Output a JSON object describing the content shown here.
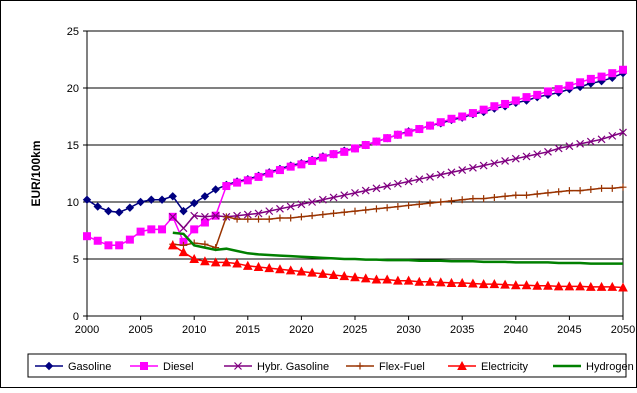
{
  "chart_data": {
    "type": "line",
    "title": "",
    "xlabel": "",
    "ylabel": "EUR/100km",
    "xlim": [
      2000,
      2050
    ],
    "ylim": [
      0,
      25
    ],
    "xticks": [
      2000,
      2005,
      2010,
      2015,
      2020,
      2025,
      2030,
      2035,
      2040,
      2045,
      2050
    ],
    "yticks": [
      0,
      5,
      10,
      15,
      20,
      25
    ],
    "grid": "horizontal",
    "legend_position": "bottom",
    "series": [
      {
        "name": "Gasoline",
        "color": "#000080",
        "marker": "diamond",
        "x": [
          2000,
          2001,
          2002,
          2003,
          2004,
          2005,
          2006,
          2007,
          2008,
          2009,
          2010,
          2011,
          2012,
          2013,
          2014,
          2015,
          2016,
          2017,
          2018,
          2019,
          2020,
          2021,
          2022,
          2023,
          2024,
          2025,
          2026,
          2027,
          2028,
          2029,
          2030,
          2031,
          2032,
          2033,
          2034,
          2035,
          2036,
          2037,
          2038,
          2039,
          2040,
          2041,
          2042,
          2043,
          2044,
          2045,
          2046,
          2047,
          2048,
          2049,
          2050
        ],
        "y": [
          10.2,
          9.6,
          9.2,
          9.1,
          9.5,
          10.0,
          10.2,
          10.2,
          10.5,
          9.2,
          9.9,
          10.5,
          11.1,
          11.5,
          11.8,
          12.0,
          12.3,
          12.6,
          12.9,
          13.2,
          13.4,
          13.7,
          14.0,
          14.2,
          14.5,
          14.7,
          15.0,
          15.3,
          15.6,
          15.9,
          16.2,
          16.4,
          16.7,
          16.9,
          17.2,
          17.4,
          17.7,
          17.9,
          18.2,
          18.4,
          18.7,
          18.9,
          19.2,
          19.4,
          19.6,
          19.9,
          20.1,
          20.4,
          20.6,
          20.9,
          21.3
        ]
      },
      {
        "name": "Diesel",
        "color": "#FF00FF",
        "marker": "square",
        "x": [
          2000,
          2001,
          2002,
          2003,
          2004,
          2005,
          2006,
          2007,
          2008,
          2009,
          2010,
          2011,
          2012,
          2013,
          2014,
          2015,
          2016,
          2017,
          2018,
          2019,
          2020,
          2021,
          2022,
          2023,
          2024,
          2025,
          2026,
          2027,
          2028,
          2029,
          2030,
          2031,
          2032,
          2033,
          2034,
          2035,
          2036,
          2037,
          2038,
          2039,
          2040,
          2041,
          2042,
          2043,
          2044,
          2045,
          2046,
          2047,
          2048,
          2049,
          2050
        ],
        "y": [
          7.0,
          6.6,
          6.2,
          6.2,
          6.7,
          7.4,
          7.6,
          7.6,
          8.7,
          6.5,
          7.6,
          8.2,
          8.8,
          11.4,
          11.7,
          11.9,
          12.2,
          12.5,
          12.8,
          13.1,
          13.3,
          13.6,
          13.9,
          14.2,
          14.4,
          14.7,
          15.0,
          15.3,
          15.6,
          15.9,
          16.1,
          16.4,
          16.7,
          17.0,
          17.3,
          17.5,
          17.8,
          18.1,
          18.4,
          18.6,
          18.9,
          19.2,
          19.4,
          19.7,
          19.9,
          20.2,
          20.5,
          20.8,
          21.0,
          21.3,
          21.6
        ]
      },
      {
        "name": "Hybr. Gasoline",
        "color": "#800080",
        "marker": "x",
        "x": [
          2008,
          2009,
          2010,
          2011,
          2012,
          2013,
          2014,
          2015,
          2016,
          2017,
          2018,
          2019,
          2020,
          2021,
          2022,
          2023,
          2024,
          2025,
          2026,
          2027,
          2028,
          2029,
          2030,
          2031,
          2032,
          2033,
          2034,
          2035,
          2036,
          2037,
          2038,
          2039,
          2040,
          2041,
          2042,
          2043,
          2044,
          2045,
          2046,
          2047,
          2048,
          2049,
          2050
        ],
        "y": [
          8.7,
          7.7,
          8.8,
          8.7,
          8.8,
          8.7,
          8.8,
          8.9,
          9.0,
          9.2,
          9.4,
          9.6,
          9.8,
          10.0,
          10.2,
          10.4,
          10.6,
          10.8,
          11.0,
          11.2,
          11.4,
          11.6,
          11.8,
          12.0,
          12.2,
          12.4,
          12.6,
          12.8,
          13.0,
          13.2,
          13.4,
          13.6,
          13.8,
          14.0,
          14.2,
          14.4,
          14.7,
          14.9,
          15.1,
          15.3,
          15.5,
          15.8,
          16.1
        ]
      },
      {
        "name": "Flex-Fuel",
        "color": "#993300",
        "marker": "plus",
        "x": [
          2008,
          2009,
          2010,
          2011,
          2012,
          2013,
          2014,
          2015,
          2016,
          2017,
          2018,
          2019,
          2020,
          2021,
          2022,
          2023,
          2024,
          2025,
          2026,
          2027,
          2028,
          2029,
          2030,
          2031,
          2032,
          2033,
          2034,
          2035,
          2036,
          2037,
          2038,
          2039,
          2040,
          2041,
          2042,
          2043,
          2044,
          2045,
          2046,
          2047,
          2048,
          2049,
          2050
        ],
        "y": [
          6.3,
          6.2,
          6.4,
          6.3,
          6.0,
          8.7,
          8.5,
          8.5,
          8.5,
          8.5,
          8.6,
          8.6,
          8.7,
          8.8,
          8.9,
          9.0,
          9.1,
          9.2,
          9.3,
          9.4,
          9.5,
          9.6,
          9.7,
          9.8,
          9.9,
          10.0,
          10.1,
          10.2,
          10.3,
          10.3,
          10.4,
          10.5,
          10.6,
          10.6,
          10.7,
          10.8,
          10.9,
          11.0,
          11.0,
          11.1,
          11.2,
          11.2,
          11.3
        ]
      },
      {
        "name": "Electricity",
        "color": "#FF0000",
        "marker": "triangle",
        "x": [
          2008,
          2009,
          2010,
          2011,
          2012,
          2013,
          2014,
          2015,
          2016,
          2017,
          2018,
          2019,
          2020,
          2021,
          2022,
          2023,
          2024,
          2025,
          2026,
          2027,
          2028,
          2029,
          2030,
          2031,
          2032,
          2033,
          2034,
          2035,
          2036,
          2037,
          2038,
          2039,
          2040,
          2041,
          2042,
          2043,
          2044,
          2045,
          2046,
          2047,
          2048,
          2049,
          2050
        ],
        "y": [
          6.2,
          5.6,
          5.0,
          4.8,
          4.7,
          4.7,
          4.6,
          4.4,
          4.3,
          4.2,
          4.1,
          4.0,
          3.9,
          3.8,
          3.7,
          3.6,
          3.5,
          3.4,
          3.3,
          3.2,
          3.2,
          3.1,
          3.1,
          3.0,
          3.0,
          2.95,
          2.9,
          2.9,
          2.85,
          2.8,
          2.8,
          2.75,
          2.7,
          2.7,
          2.65,
          2.65,
          2.6,
          2.6,
          2.6,
          2.55,
          2.55,
          2.55,
          2.5
        ]
      },
      {
        "name": "Hydrogen",
        "color": "#008000",
        "marker": "none",
        "x": [
          2008,
          2009,
          2010,
          2011,
          2012,
          2013,
          2014,
          2015,
          2016,
          2017,
          2018,
          2019,
          2020,
          2021,
          2022,
          2023,
          2024,
          2025,
          2026,
          2027,
          2028,
          2029,
          2030,
          2031,
          2032,
          2033,
          2034,
          2035,
          2036,
          2037,
          2038,
          2039,
          2040,
          2041,
          2042,
          2043,
          2044,
          2045,
          2046,
          2047,
          2048,
          2049,
          2050
        ],
        "y": [
          7.3,
          7.2,
          6.2,
          6.0,
          5.8,
          5.9,
          5.7,
          5.5,
          5.4,
          5.35,
          5.3,
          5.25,
          5.2,
          5.15,
          5.1,
          5.05,
          5.0,
          5.0,
          4.95,
          4.95,
          4.9,
          4.9,
          4.9,
          4.85,
          4.85,
          4.85,
          4.8,
          4.8,
          4.8,
          4.75,
          4.75,
          4.75,
          4.7,
          4.7,
          4.7,
          4.7,
          4.65,
          4.65,
          4.65,
          4.6,
          4.6,
          4.6,
          4.6
        ]
      }
    ]
  }
}
